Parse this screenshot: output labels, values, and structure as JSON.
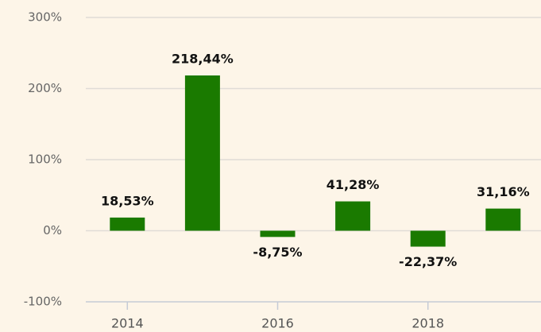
{
  "chart_data": {
    "type": "bar",
    "categories": [
      "2014",
      null,
      "2016",
      null,
      "2018",
      null
    ],
    "values": [
      18.53,
      218.44,
      -8.75,
      41.28,
      -22.37,
      31.16
    ],
    "value_labels": [
      "18,53%",
      "218,44%",
      "-8,75%",
      "41,28%",
      "-22,37%",
      "31,16%"
    ],
    "color": "#1a7a00",
    "ylim": [
      -100,
      300
    ],
    "yticks": [
      {
        "value": -100,
        "label": "-100%"
      },
      {
        "value": 0,
        "label": "0%"
      },
      {
        "value": 100,
        "label": "100%"
      },
      {
        "value": 200,
        "label": "200%"
      },
      {
        "value": 300,
        "label": "300%"
      }
    ],
    "grid": true
  }
}
